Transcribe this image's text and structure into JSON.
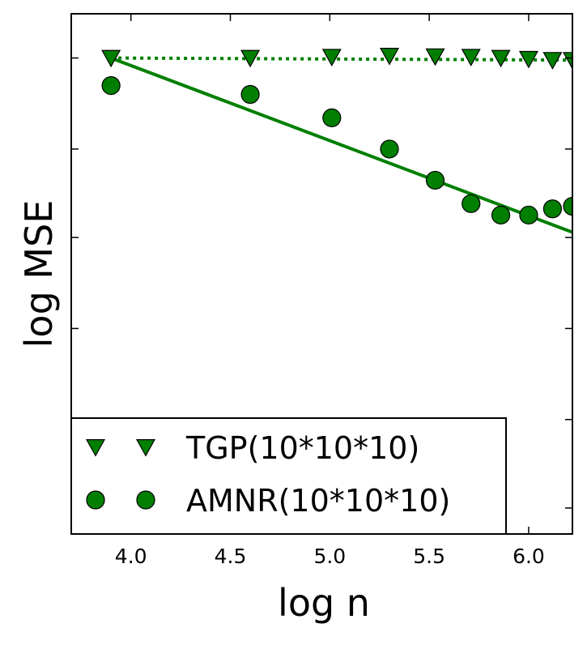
{
  "chart_data": {
    "type": "scatter",
    "title": "",
    "xlabel": "log n",
    "ylabel": "log MSE",
    "xlim": [
      3.7,
      6.22
    ],
    "ylim": [
      0.0,
      1.0
    ],
    "xticks": [
      4.0,
      4.5,
      5.0,
      5.5,
      6.0
    ],
    "xtick_labels": [
      "4.0",
      "4.5",
      "5.0",
      "5.5",
      "6.0"
    ],
    "yticks": [
      0.05,
      0.22,
      0.395,
      0.57,
      0.74,
      0.915
    ],
    "ytick_labels": [
      "",
      "",
      "",
      "",
      "",
      ""
    ],
    "grid": false,
    "legend_position": "bottom-left",
    "series": [
      {
        "name": "TGP(10*10*10)",
        "marker": "triangle-down",
        "color": "#007f00",
        "x": [
          3.9,
          4.6,
          5.01,
          5.3,
          5.53,
          5.71,
          5.86,
          6.0,
          6.12,
          6.22
        ],
        "y": [
          0.915,
          0.915,
          0.917,
          0.919,
          0.918,
          0.917,
          0.915,
          0.913,
          0.911,
          0.911
        ]
      },
      {
        "name": "AMNR(10*10*10)",
        "marker": "circle",
        "color": "#007f00",
        "x": [
          3.9,
          4.6,
          5.01,
          5.3,
          5.53,
          5.71,
          5.86,
          6.0,
          6.12,
          6.22
        ],
        "y": [
          0.862,
          0.845,
          0.8,
          0.74,
          0.68,
          0.635,
          0.613,
          0.613,
          0.625,
          0.63
        ]
      }
    ],
    "fit_lines": [
      {
        "style": "dotted",
        "color": "#007f00",
        "x": [
          3.9,
          6.22
        ],
        "y": [
          0.915,
          0.911
        ]
      },
      {
        "style": "solid",
        "color": "#007f00",
        "x": [
          3.9,
          6.22
        ],
        "y": [
          0.915,
          0.58
        ]
      }
    ]
  }
}
